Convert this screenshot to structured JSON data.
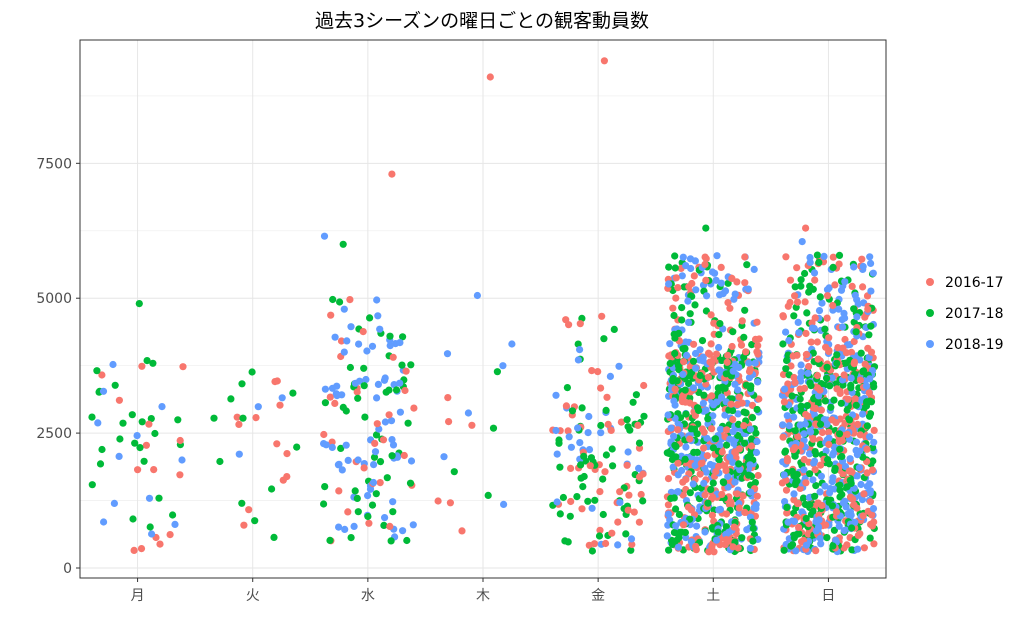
{
  "chart_data": {
    "type": "scatter",
    "title": "過去3シーズンの曜日ごとの観客動員数",
    "xlabel": "",
    "ylabel": "",
    "categories": [
      "月",
      "火",
      "水",
      "木",
      "金",
      "土",
      "日"
    ],
    "yticks": [
      0,
      2500,
      5000,
      7500
    ],
    "ylim": [
      0,
      9600
    ],
    "grid": true,
    "legend_position": "right",
    "series": [
      {
        "name": "2016-17",
        "color": "#F8766D",
        "category_counts": [
          15,
          12,
          30,
          6,
          50,
          300,
          300
        ],
        "notable_points": [
          {
            "category": "水",
            "value": 7300
          },
          {
            "category": "木",
            "value": 9100
          },
          {
            "category": "金",
            "value": 9400
          },
          {
            "category": "日",
            "value": 6300
          }
        ]
      },
      {
        "name": "2017-18",
        "color": "#00BA38",
        "category_counts": [
          25,
          12,
          50,
          4,
          60,
          300,
          300
        ],
        "notable_points": [
          {
            "category": "月",
            "value": 4900
          },
          {
            "category": "水",
            "value": 6000
          },
          {
            "category": "土",
            "value": 6300
          }
        ]
      },
      {
        "name": "2018-19",
        "color": "#619CFF",
        "category_counts": [
          12,
          3,
          70,
          6,
          30,
          300,
          300
        ],
        "notable_points": [
          {
            "category": "水",
            "value": 6150
          },
          {
            "category": "木",
            "value": 5050
          },
          {
            "category": "日",
            "value": 6050
          }
        ]
      }
    ]
  }
}
